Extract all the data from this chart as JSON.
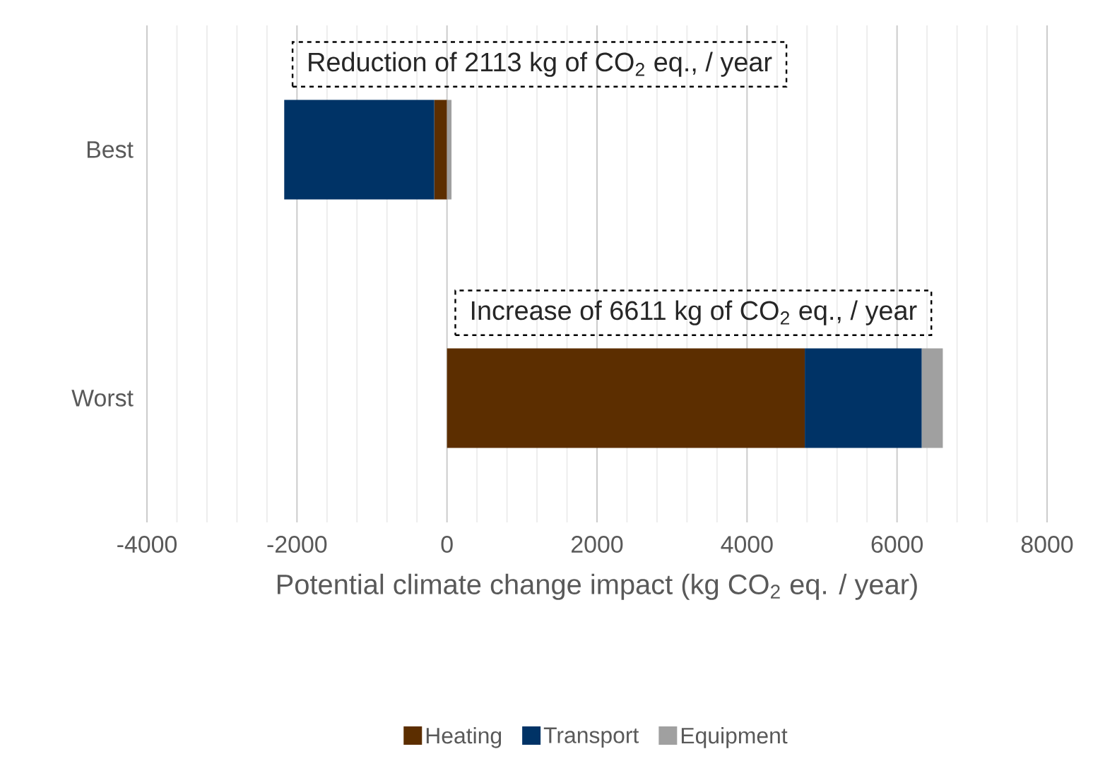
{
  "chart_data": {
    "type": "bar",
    "orientation": "horizontal",
    "stacked": true,
    "categories": [
      "Best",
      "Worst"
    ],
    "series": [
      {
        "name": "Heating",
        "color": "#5c2e00",
        "values": [
          -170,
          4770
        ]
      },
      {
        "name": "Transport",
        "color": "#003366",
        "values": [
          -2000,
          1560
        ]
      },
      {
        "name": "Equipment",
        "color": "#a0a0a0",
        "values": [
          60,
          280
        ]
      }
    ],
    "xlabel": "Potential climate change impact (kg CO$_{2}$ eq. / year)",
    "xlim": [
      -4000,
      8000
    ],
    "xticks": [
      -4000,
      -2000,
      0,
      2000,
      4000,
      6000,
      8000
    ],
    "grid": "x",
    "legend": "bottom",
    "annotations": [
      "Reduction of 2113 kg of CO$_{2}$ eq., / year",
      "Increase of 6611 kg of CO$_{2}$ eq., / year"
    ]
  }
}
